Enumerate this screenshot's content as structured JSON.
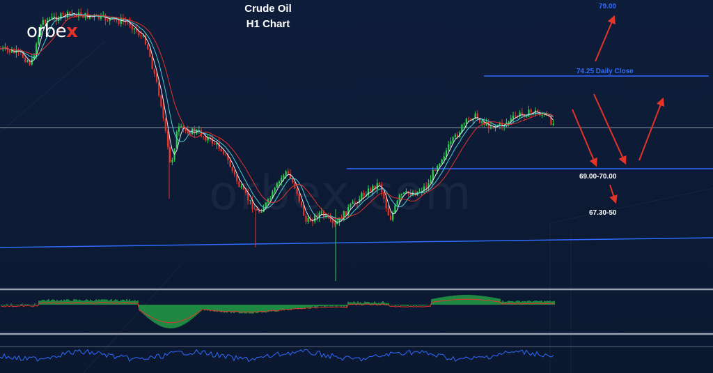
{
  "brand": {
    "logo_prefix": "orbe",
    "logo_x": "x",
    "watermark": "orbex.com"
  },
  "title": {
    "line1": "Crude Oil",
    "line2": "H1 Chart"
  },
  "colors": {
    "background": "#0c1a33",
    "bull_candle": "#2bd34d",
    "bear_candle": "#e4342a",
    "support_line": "#2f6bff",
    "arrow": "#e4342a",
    "grey_line": "#8a94a6"
  },
  "chart_data": {
    "type": "line",
    "title": "Crude Oil",
    "subtitle": "H1 Chart",
    "price_levels": [
      {
        "label": "74.25 Daily Close",
        "name": "daily-close-line"
      },
      {
        "label": "69.00-70.00",
        "name": "support-zone-line"
      }
    ],
    "targets": [
      {
        "label": "79.00",
        "direction": "up"
      },
      {
        "label": "67.30-50",
        "direction": "down"
      }
    ],
    "lower_panels": [
      "histogram oscillator",
      "line oscillator"
    ]
  }
}
